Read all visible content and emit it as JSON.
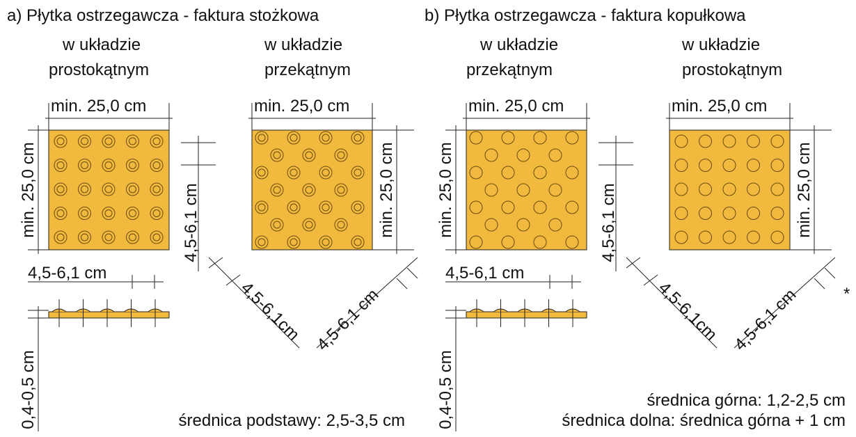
{
  "panels": [
    {
      "title": "a) Płytka ostrzegawcza - faktura stożkowa",
      "layout_left": [
        "w układzie",
        "prostokątnym"
      ],
      "layout_right": [
        "w układzie",
        "przekątnym"
      ],
      "tile_width_left": "min. 25,0 cm",
      "tile_height_left": "min. 25,0 cm",
      "tile_width_right": "min. 25,0 cm",
      "tile_height_right": "min. 25,0 cm",
      "spacing_horizontal": "4,5-6,1 cm",
      "spacing_vertical": "4,5-6,1 cm",
      "spacing_diag_1": "4,5-6,1cm",
      "spacing_diag_2": "4,5-6,1 cm",
      "thickness": "0,4-0,5 cm",
      "notes": [
        "średnica podstawy: 2,5-3,5 cm"
      ]
    },
    {
      "title": "b) Płytka ostrzegawcza - faktura kopułkowa",
      "layout_left": [
        "w układzie",
        "przekątnym"
      ],
      "layout_right": [
        "w układzie",
        "prostokątnym"
      ],
      "tile_width_left": "min. 25,0 cm",
      "tile_height_left": "min. 25,0 cm",
      "tile_width_right": "min. 25,0 cm",
      "tile_height_right": "min. 25,0 cm",
      "spacing_horizontal": "4,5-6,1 cm",
      "spacing_vertical": "4,5-6,1 cm",
      "spacing_diag_1": "4,5-6,1cm",
      "spacing_diag_2": "4,5-6,1 cm",
      "thickness": "0,4-0,5 cm",
      "asterisk": "*",
      "notes": [
        "średnica górna: 1,2-2,5 cm",
        "średnica dolna: średnica górna + 1 cm"
      ]
    }
  ]
}
